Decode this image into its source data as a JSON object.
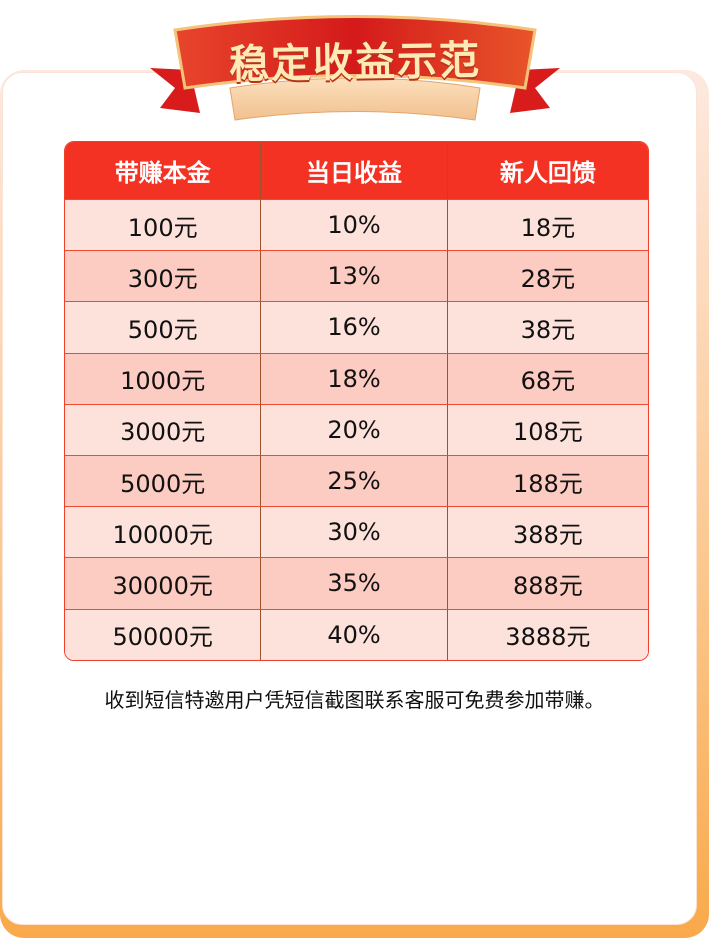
{
  "banner": {
    "title": "稳定收益示范"
  },
  "table": {
    "headers": [
      "带赚本金",
      "当日收益",
      "新人回馈"
    ],
    "rows": [
      [
        "100元",
        "10%",
        "18元"
      ],
      [
        "300元",
        "13%",
        "28元"
      ],
      [
        "500元",
        "16%",
        "38元"
      ],
      [
        "1000元",
        "18%",
        "68元"
      ],
      [
        "3000元",
        "20%",
        "108元"
      ],
      [
        "5000元",
        "25%",
        "188元"
      ],
      [
        "10000元",
        "30%",
        "388元"
      ],
      [
        "30000元",
        "35%",
        "888元"
      ],
      [
        "50000元",
        "40%",
        "3888元"
      ]
    ]
  },
  "note": "收到短信特邀用户凭短信截图联系客服可免费参加带赚。",
  "colors": {
    "header": "#f33224",
    "row_light": "#fde2dc",
    "row_dark": "#fccbc1",
    "border_accent": "#f9a94a"
  }
}
